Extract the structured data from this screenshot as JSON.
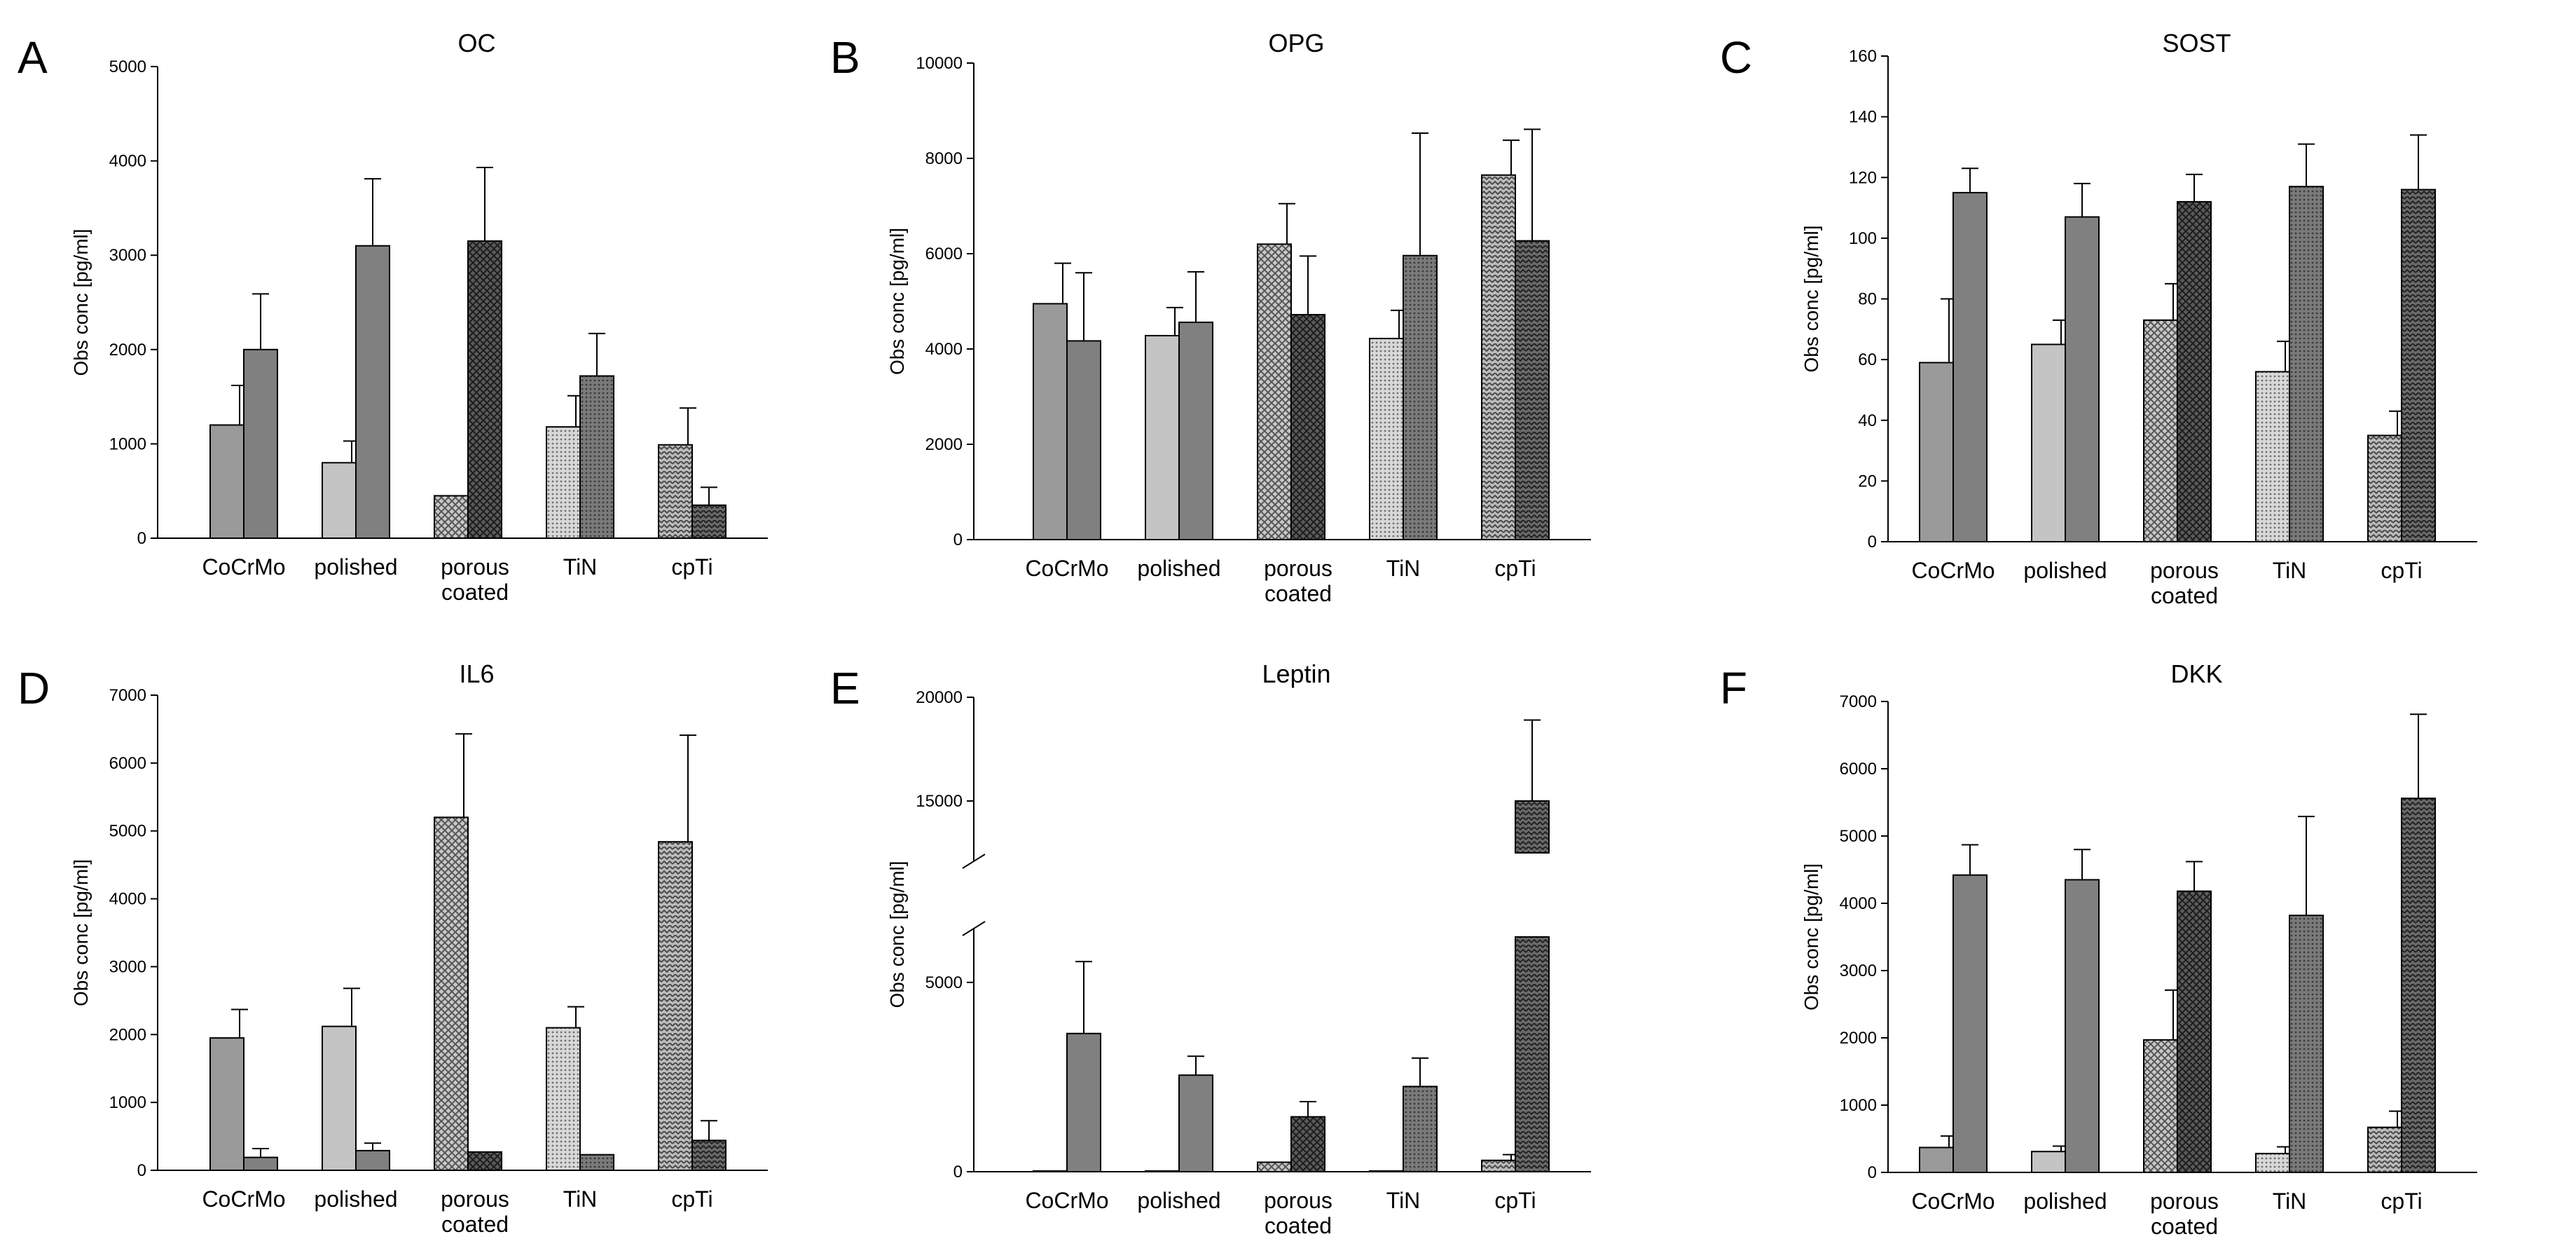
{
  "figure": {
    "patterns": [
      "solid-dark",
      "solid-light",
      "crosshatch-dense",
      "dots-fine",
      "weave-zigzag"
    ],
    "colors": {
      "primary_fill": "#808080",
      "secondary_fill": "#c4c4c4",
      "stroke": "#000000"
    }
  },
  "chart_data": [
    {
      "letter": "A",
      "type": "bar",
      "title": "OC",
      "ylabel": "Obs conc [pg/ml]",
      "ylim": [
        0,
        5000
      ],
      "yticks": [
        0,
        1000,
        2000,
        3000,
        4000,
        5000
      ],
      "yticklabels": [
        "0",
        "1000",
        "2000",
        "3000",
        "4000",
        "5000"
      ],
      "categories": [
        "CoCrMo",
        "polished",
        "porous coated",
        "TiN",
        "cpTi"
      ],
      "series": [
        {
          "values": [
            1200,
            800,
            450,
            1180,
            990
          ],
          "errors": [
            420,
            230,
            0,
            330,
            390
          ]
        },
        {
          "values": [
            2000,
            3100,
            3150,
            1720,
            350
          ],
          "errors": [
            590,
            710,
            780,
            450,
            190
          ]
        }
      ]
    },
    {
      "letter": "B",
      "type": "bar",
      "title": "OPG",
      "ylabel": "Obs conc [pg/ml]",
      "ylim": [
        0,
        10000
      ],
      "yticks": [
        0,
        2000,
        4000,
        6000,
        8000,
        10000
      ],
      "yticklabels": [
        "0",
        "2000",
        "4000",
        "6000",
        "8000",
        "10000"
      ],
      "categories": [
        "CoCrMo",
        "polished",
        "porous coated",
        "TiN",
        "cpTi"
      ],
      "series": [
        {
          "values": [
            4950,
            4280,
            6200,
            4220,
            7650
          ],
          "errors": [
            850,
            590,
            850,
            590,
            730
          ]
        },
        {
          "values": [
            4170,
            4560,
            4720,
            5960,
            6270
          ],
          "errors": [
            1430,
            1060,
            1230,
            2570,
            2340
          ]
        }
      ]
    },
    {
      "letter": "C",
      "type": "bar",
      "title": "SOST",
      "ylabel": "Obs conc [pg/ml]",
      "ylim": [
        0,
        160
      ],
      "yticks": [
        0,
        20,
        40,
        60,
        80,
        100,
        120,
        140,
        160
      ],
      "yticklabels": [
        "0",
        "20",
        "40",
        "60",
        "80",
        "100",
        "120",
        "140",
        "160"
      ],
      "categories": [
        "CoCrMo",
        "polished",
        "porous coated",
        "TiN",
        "cpTi"
      ],
      "series": [
        {
          "values": [
            59,
            65,
            73,
            56,
            35
          ],
          "errors": [
            21,
            8,
            12,
            10,
            8
          ]
        },
        {
          "values": [
            115,
            107,
            112,
            117,
            116
          ],
          "errors": [
            8,
            11,
            9,
            14,
            18
          ]
        }
      ]
    },
    {
      "letter": "D",
      "type": "bar",
      "title": "IL6",
      "ylabel": "Obs conc [pg/ml]",
      "ylim": [
        0,
        7000
      ],
      "yticks": [
        0,
        1000,
        2000,
        3000,
        4000,
        5000,
        6000,
        7000
      ],
      "yticklabels": [
        "0",
        "1000",
        "2000",
        "3000",
        "4000",
        "5000",
        "6000",
        "7000"
      ],
      "categories": [
        "CoCrMo",
        "polished",
        "porous coated",
        "TiN",
        "cpTi"
      ],
      "series": [
        {
          "values": [
            1950,
            2120,
            5200,
            2100,
            4840
          ],
          "errors": [
            420,
            560,
            1230,
            310,
            1570
          ]
        },
        {
          "values": [
            190,
            290,
            270,
            230,
            440
          ],
          "errors": [
            130,
            110,
            0,
            0,
            290
          ]
        }
      ]
    },
    {
      "letter": "E",
      "type": "bar",
      "title": "Leptin",
      "ylabel": "Obs conc [pg/ml]",
      "broken_axis": true,
      "yticks": [
        0,
        5000,
        15000,
        20000
      ],
      "yticklabels": [
        "0",
        "5000",
        "15000",
        "20000"
      ],
      "categories": [
        "CoCrMo",
        "polished",
        "porous coated",
        "TiN",
        "cpTi"
      ],
      "series": [
        {
          "values": [
            20,
            20,
            250,
            20,
            300
          ],
          "errors": [
            0,
            0,
            0,
            0,
            150
          ]
        },
        {
          "values": [
            3650,
            2550,
            1450,
            2250,
            15000
          ],
          "errors": [
            1900,
            500,
            400,
            750,
            3900
          ]
        }
      ]
    },
    {
      "letter": "F",
      "type": "bar",
      "title": "DKK",
      "ylabel": "Obs conc [pg/ml]",
      "ylim": [
        0,
        7000
      ],
      "yticks": [
        0,
        1000,
        2000,
        3000,
        4000,
        5000,
        6000,
        7000
      ],
      "yticklabels": [
        "0",
        "1000",
        "2000",
        "3000",
        "4000",
        "5000",
        "6000",
        "7000"
      ],
      "categories": [
        "CoCrMo",
        "polished",
        "porous coated",
        "TiN",
        "cpTi"
      ],
      "series": [
        {
          "values": [
            370,
            310,
            1970,
            280,
            670
          ],
          "errors": [
            170,
            80,
            740,
            100,
            240
          ]
        },
        {
          "values": [
            4420,
            4350,
            4180,
            3820,
            5560
          ],
          "errors": [
            450,
            450,
            440,
            1470,
            1250
          ]
        }
      ]
    }
  ]
}
